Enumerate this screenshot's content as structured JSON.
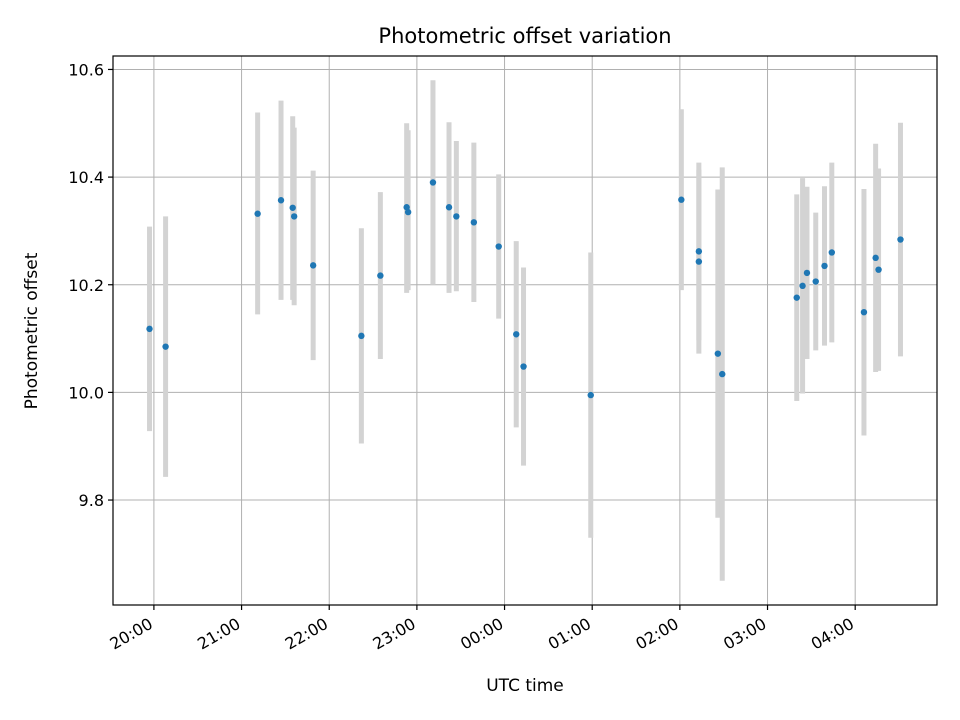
{
  "chart_data": {
    "type": "scatter",
    "title": "Photometric offset variation",
    "xlabel": "UTC time",
    "ylabel": "Photometric offset",
    "x_unit": "UTC time (hours after 20:00 on the first night)",
    "xlim": [
      "19:32",
      "04:56"
    ],
    "ylim": [
      9.605,
      10.625
    ],
    "yticks": [
      9.8,
      10.0,
      10.2,
      10.4,
      10.6
    ],
    "ytick_labels": [
      "9.8",
      "10.0",
      "10.2",
      "10.4",
      "10.6"
    ],
    "xticks": [
      "20:00",
      "21:00",
      "22:00",
      "23:00",
      "00:00",
      "01:00",
      "02:00",
      "03:00",
      "04:00"
    ],
    "grid": true,
    "colors": {
      "point": "#1f77b4",
      "errorbar": "#d3d3d3",
      "grid": "#b0b0b0",
      "axes": "#000000"
    },
    "points": [
      {
        "time": "19:57",
        "y": 10.118,
        "lo": 9.928,
        "hi": 10.308
      },
      {
        "time": "20:08",
        "y": 10.085,
        "lo": 9.843,
        "hi": 10.327
      },
      {
        "time": "21:11",
        "y": 10.332,
        "lo": 10.145,
        "hi": 10.52
      },
      {
        "time": "21:27",
        "y": 10.357,
        "lo": 10.172,
        "hi": 10.542
      },
      {
        "time": "21:35",
        "y": 10.343,
        "lo": 10.172,
        "hi": 10.513
      },
      {
        "time": "21:36",
        "y": 10.327,
        "lo": 10.162,
        "hi": 10.492
      },
      {
        "time": "21:49",
        "y": 10.236,
        "lo": 10.06,
        "hi": 10.412
      },
      {
        "time": "22:22",
        "y": 10.105,
        "lo": 9.905,
        "hi": 10.305
      },
      {
        "time": "22:35",
        "y": 10.217,
        "lo": 10.062,
        "hi": 10.372
      },
      {
        "time": "22:53",
        "y": 10.344,
        "lo": 10.185,
        "hi": 10.5
      },
      {
        "time": "22:54",
        "y": 10.335,
        "lo": 10.19,
        "hi": 10.487
      },
      {
        "time": "23:11",
        "y": 10.39,
        "lo": 10.2,
        "hi": 10.58
      },
      {
        "time": "23:22",
        "y": 10.344,
        "lo": 10.185,
        "hi": 10.502
      },
      {
        "time": "23:27",
        "y": 10.327,
        "lo": 10.188,
        "hi": 10.467
      },
      {
        "time": "23:39",
        "y": 10.316,
        "lo": 10.168,
        "hi": 10.464
      },
      {
        "time": "23:56",
        "y": 10.271,
        "lo": 10.137,
        "hi": 10.405
      },
      {
        "time": "00:08",
        "y": 10.108,
        "lo": 9.935,
        "hi": 10.281
      },
      {
        "time": "00:13",
        "y": 10.048,
        "lo": 9.864,
        "hi": 10.232
      },
      {
        "time": "00:59",
        "y": 9.995,
        "lo": 9.73,
        "hi": 10.26
      },
      {
        "time": "02:01",
        "y": 10.358,
        "lo": 10.19,
        "hi": 10.526
      },
      {
        "time": "02:13",
        "y": 10.262,
        "lo": 10.097,
        "hi": 10.427
      },
      {
        "time": "02:13",
        "y": 10.243,
        "lo": 10.072,
        "hi": 10.414
      },
      {
        "time": "02:26",
        "y": 10.072,
        "lo": 9.767,
        "hi": 10.377
      },
      {
        "time": "02:29",
        "y": 10.034,
        "lo": 9.65,
        "hi": 10.418
      },
      {
        "time": "03:20",
        "y": 10.176,
        "lo": 9.984,
        "hi": 10.368
      },
      {
        "time": "03:24",
        "y": 10.198,
        "lo": 9.998,
        "hi": 10.398
      },
      {
        "time": "03:27",
        "y": 10.222,
        "lo": 10.062,
        "hi": 10.382
      },
      {
        "time": "03:33",
        "y": 10.206,
        "lo": 10.078,
        "hi": 10.334
      },
      {
        "time": "03:39",
        "y": 10.235,
        "lo": 10.087,
        "hi": 10.383
      },
      {
        "time": "03:44",
        "y": 10.26,
        "lo": 10.093,
        "hi": 10.427
      },
      {
        "time": "04:06",
        "y": 10.149,
        "lo": 9.92,
        "hi": 10.378
      },
      {
        "time": "04:14",
        "y": 10.25,
        "lo": 10.038,
        "hi": 10.462
      },
      {
        "time": "04:16",
        "y": 10.228,
        "lo": 10.04,
        "hi": 10.416
      },
      {
        "time": "04:31",
        "y": 10.284,
        "lo": 10.067,
        "hi": 10.501
      }
    ]
  }
}
